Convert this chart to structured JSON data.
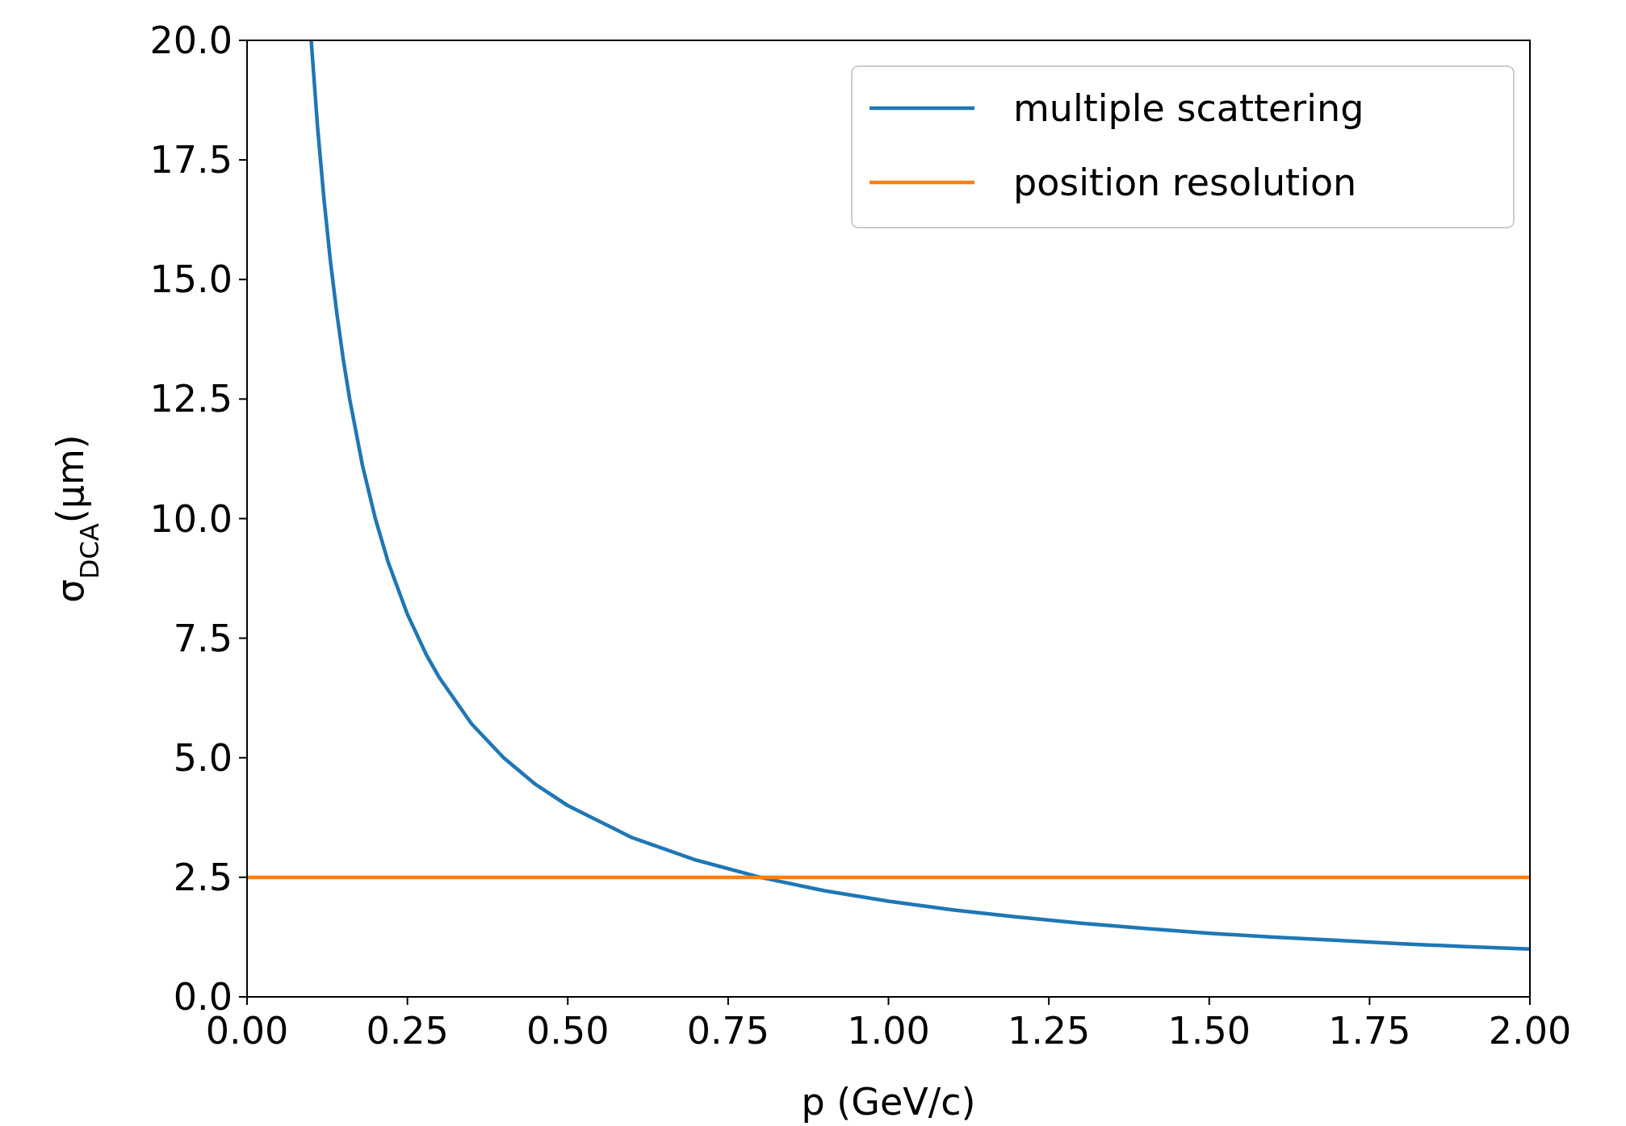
{
  "chart_data": {
    "type": "line",
    "xlabel": "p (GeV/c)",
    "ylabel": "σ$_{DCA}$(μm)",
    "xlim": [
      0,
      2
    ],
    "ylim": [
      0,
      20
    ],
    "xticks": [
      {
        "value": 0,
        "label": "0.00"
      },
      0.25,
      {
        "value": 0.5,
        "label": "0.50"
      },
      0.75,
      {
        "value": 1,
        "label": "1.00"
      },
      1.25,
      {
        "value": 1.5,
        "label": "1.50"
      },
      1.75,
      {
        "value": 2,
        "label": "2.00"
      }
    ],
    "yticks": [
      {
        "value": 0,
        "label": "0.0"
      },
      2.5,
      {
        "value": 5,
        "label": "5.0"
      },
      7.5,
      {
        "value": 10,
        "label": "10.0"
      },
      12.5,
      {
        "value": 15,
        "label": "15.0"
      },
      17.5,
      {
        "value": 20,
        "label": "20.0"
      }
    ],
    "grid": false,
    "legend": "top right",
    "marker": "none",
    "line_style": "solid",
    "series": [
      {
        "name": "multiple scattering",
        "color": "#1f77b4",
        "x": [
          0.1,
          0.11,
          0.12,
          0.13,
          0.14,
          0.15,
          0.16,
          0.18,
          0.2,
          0.22,
          0.25,
          0.28,
          0.3,
          0.35,
          0.4,
          0.45,
          0.5,
          0.6,
          0.7,
          0.8,
          0.9,
          1.0,
          1.1,
          1.2,
          1.3,
          1.4,
          1.5,
          1.6,
          1.7,
          1.8,
          1.9,
          2.0
        ],
        "values": [
          20,
          18.18,
          16.67,
          15.38,
          14.29,
          13.33,
          12.5,
          11.11,
          10,
          9.09,
          8,
          7.14,
          6.67,
          5.71,
          5,
          4.44,
          4,
          3.33,
          2.86,
          2.5,
          2.22,
          2,
          1.82,
          1.67,
          1.54,
          1.43,
          1.33,
          1.25,
          1.18,
          1.11,
          1.05,
          1
        ]
      },
      {
        "name": "position resolution",
        "color": "#ff7f0e",
        "x": [
          0,
          2
        ],
        "values": [
          2.5,
          2.5
        ]
      }
    ]
  }
}
